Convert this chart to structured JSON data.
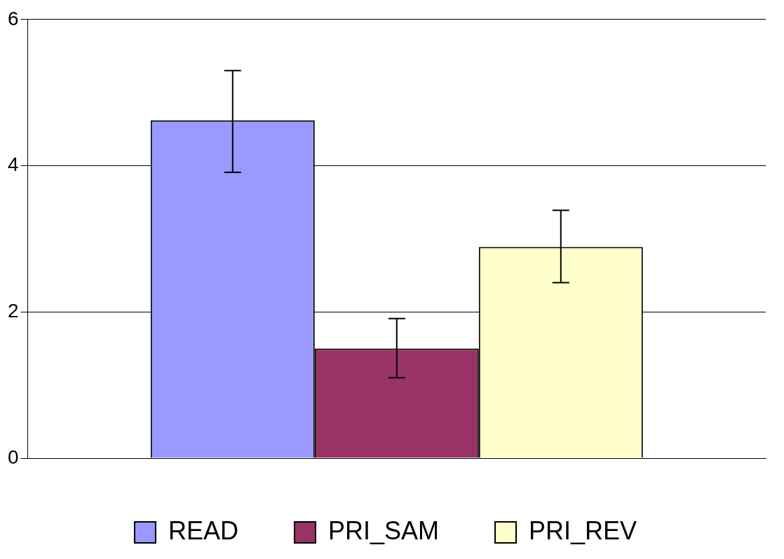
{
  "chart_data": {
    "type": "bar",
    "categories": [
      null
    ],
    "series": [
      {
        "name": "READ",
        "color": "#9999ff",
        "values": [
          4.62
        ],
        "errors": [
          [
            3.91,
            5.3
          ]
        ]
      },
      {
        "name": "PRI_SAM",
        "color": "#993366",
        "values": [
          1.5
        ],
        "errors": [
          [
            1.1,
            1.91
          ]
        ]
      },
      {
        "name": "PRI_REV",
        "color": "#ffffcc",
        "values": [
          2.89
        ],
        "errors": [
          [
            2.4,
            3.39
          ]
        ]
      }
    ],
    "ylim": [
      0,
      6
    ],
    "yticks": [
      0,
      2,
      4,
      6
    ],
    "grid": "y",
    "legend": "bottom"
  }
}
